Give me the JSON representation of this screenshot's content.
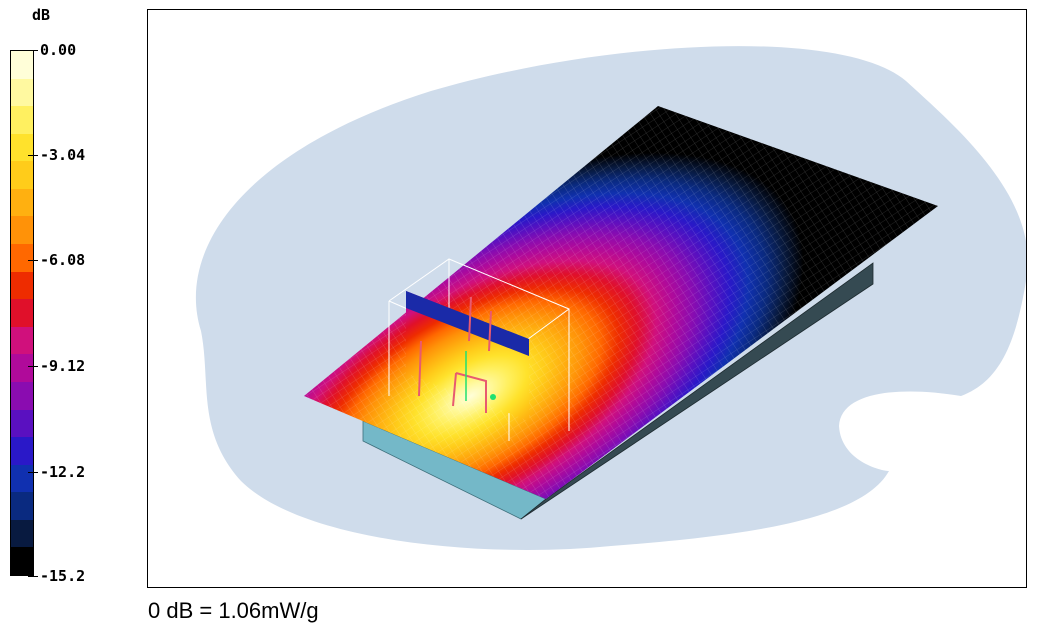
{
  "chart_data": {
    "type": "heatmap",
    "title": "",
    "colorbar": {
      "unit_label": "dB",
      "range": [
        -15.2,
        0.0
      ],
      "tick_labels": [
        "0.00",
        "-3.04",
        "-6.08",
        "-9.12",
        "-12.2",
        "-15.2"
      ],
      "tick_values": [
        0.0,
        -3.04,
        -6.08,
        -9.12,
        -12.2,
        -15.2
      ],
      "colors": [
        "#fffed8",
        "#fff9a0",
        "#fff060",
        "#ffe22c",
        "#ffcc1a",
        "#ffb010",
        "#ff9208",
        "#ff6800",
        "#ee2c00",
        "#e0102a",
        "#d0107c",
        "#b00a9a",
        "#8a0cb0",
        "#5a10c0",
        "#2a18c8",
        "#1030b0",
        "#0a2a80",
        "#081a40",
        "#000000"
      ]
    },
    "reference": "0 dB = 1.06mW/g"
  }
}
